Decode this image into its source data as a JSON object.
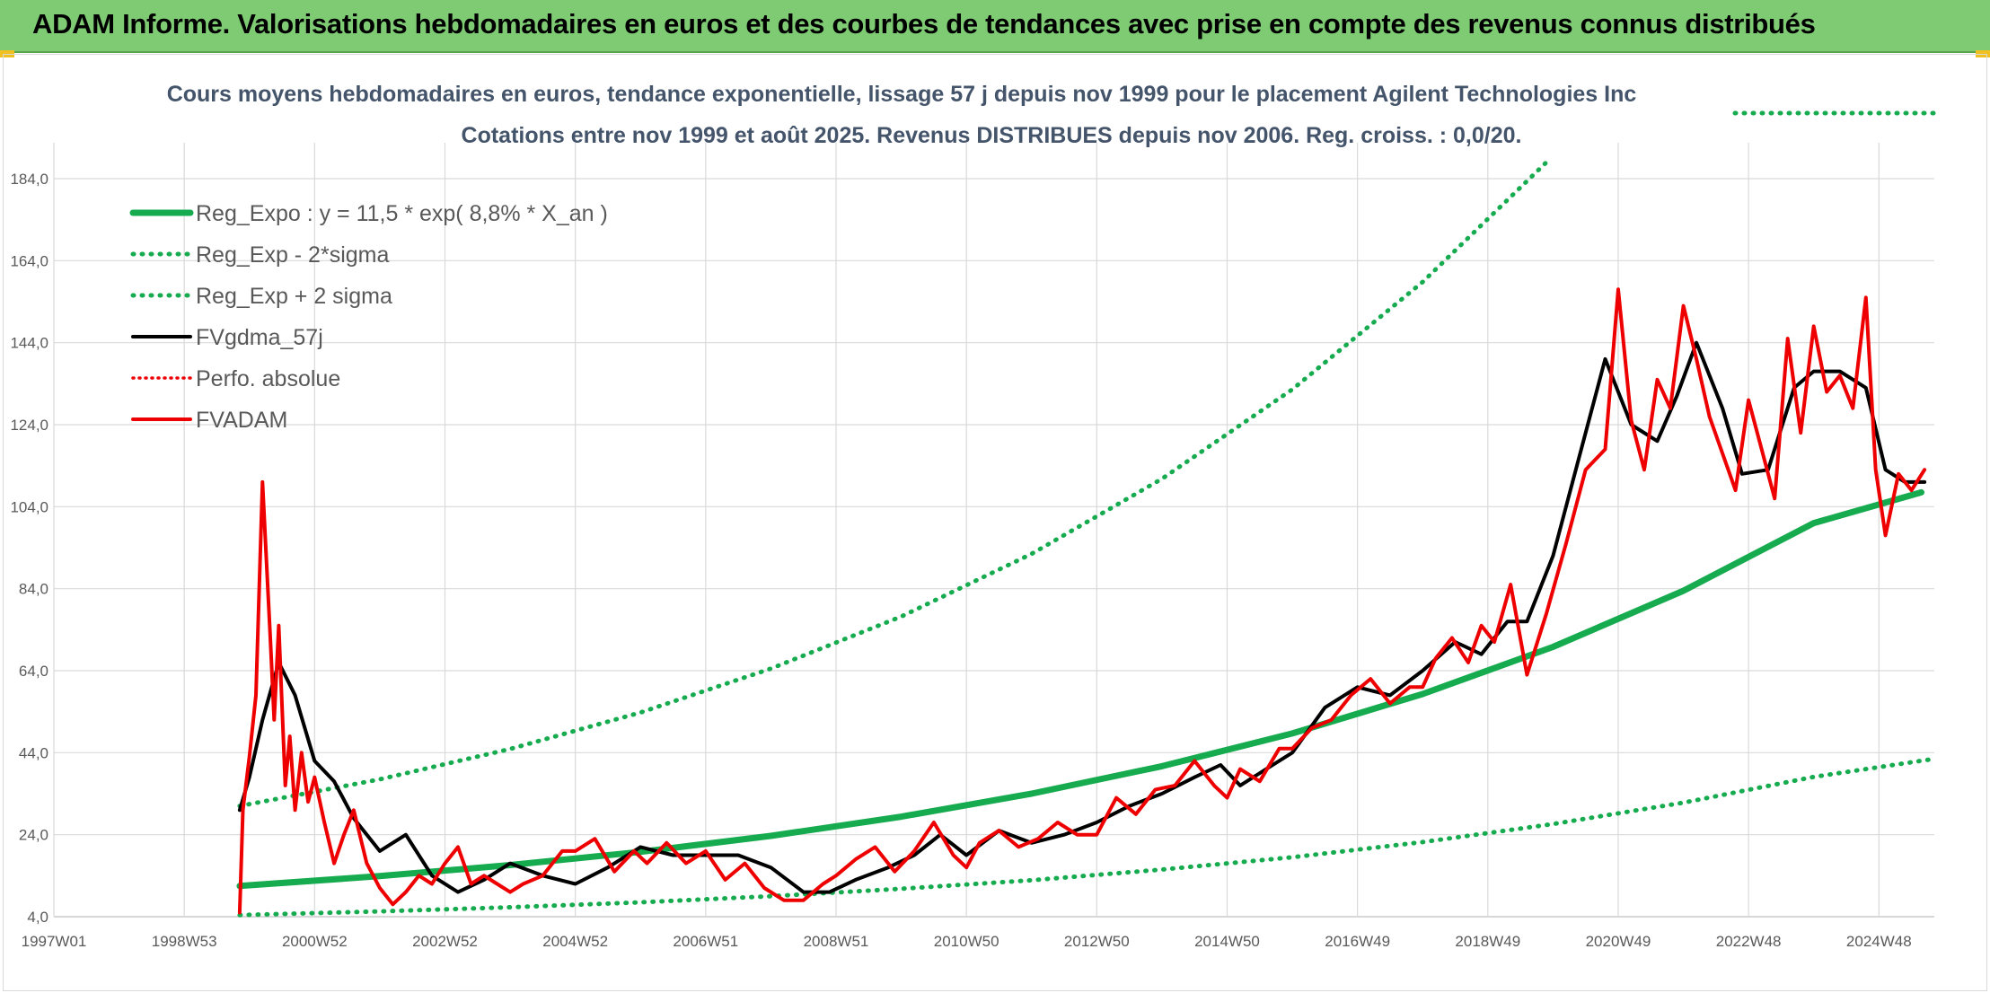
{
  "banner": {
    "title": "ADAM Informe. Valorisations hebdomadaires en euros et des courbes de tendances avec prise en compte des revenus connus distribués"
  },
  "colors": {
    "banner_bg": "#7ecb74",
    "reg_green": "#16ab4f",
    "fvgdma_black": "#000000",
    "fvadam_red": "#ee0000",
    "title_blue": "#44546a"
  },
  "chart_data": {
    "type": "line",
    "title": "Cours moyens hebdomadaires en euros, tendance exponentielle, lissage 57 j depuis nov 1999 pour le placement Agilent Technologies Inc",
    "subtitle": "Cotations entre nov 1999 et août 2025. Revenus DISTRIBUES depuis nov 2006. Reg. croiss. : 0,0/20.",
    "xlabel": "",
    "ylabel": "",
    "x_ticks": [
      "1997W01",
      "1998W53",
      "2000W52",
      "2002W52",
      "2004W52",
      "2006W51",
      "2008W51",
      "2010W50",
      "2012W50",
      "2014W50",
      "2016W49",
      "2018W49",
      "2020W49",
      "2022W48",
      "2024W48"
    ],
    "xlim": [
      1997.0,
      2025.85
    ],
    "y_ticks": [
      "4,0",
      "24,0",
      "44,0",
      "64,0",
      "84,0",
      "104,0",
      "124,0",
      "144,0",
      "164,0",
      "184,0"
    ],
    "ylim": [
      4,
      184
    ],
    "grid": true,
    "legend_position": "top-left",
    "series": [
      {
        "name": "Reg_Expo : y = 11,5 * exp( 8,8% *  X_an )",
        "style": "solid-green",
        "x": [
          1999.85,
          2002.0,
          2004.0,
          2006.0,
          2008.0,
          2010.0,
          2012.0,
          2014.0,
          2016.0,
          2018.0,
          2020.0,
          2022.0,
          2024.0,
          2025.65
        ],
        "values": [
          11.5,
          13.9,
          16.6,
          19.8,
          23.7,
          28.4,
          34.0,
          40.7,
          48.7,
          58.3,
          69.8,
          83.5,
          100.0,
          107.5
        ]
      },
      {
        "name": "Reg_Exp - 2*sigma",
        "style": "dotted-green",
        "x": [
          1999.85,
          2002.0,
          2004.0,
          2006.0,
          2008.0,
          2010.0,
          2012.0,
          2014.0,
          2016.0,
          2018.0,
          2020.0,
          2022.0,
          2024.0,
          2025.85
        ],
        "values": [
          4.4,
          5.3,
          6.3,
          7.5,
          9.0,
          10.8,
          12.9,
          15.5,
          18.5,
          22.2,
          26.6,
          31.8,
          38.1,
          42.5
        ]
      },
      {
        "name": "Reg_Exp + 2 sigma",
        "style": "dotted-green",
        "x": [
          1999.85,
          2002.0,
          2004.0,
          2006.0,
          2008.0,
          2010.0,
          2012.0,
          2014.0,
          2016.0,
          2018.0,
          2019.9
        ],
        "values": [
          31.0,
          37.5,
          44.9,
          53.8,
          64.5,
          77.2,
          92.5,
          110.8,
          132.6,
          158.8,
          188.0
        ]
      },
      {
        "name": "FVgdma_57j",
        "style": "solid-black",
        "x": [
          1999.85,
          2000.0,
          2000.2,
          2000.45,
          2000.7,
          2001.0,
          2001.3,
          2001.6,
          2002.0,
          2002.4,
          2002.8,
          2003.2,
          2003.6,
          2004.0,
          2004.5,
          2005.0,
          2005.5,
          2006.0,
          2006.5,
          2007.0,
          2007.5,
          2008.0,
          2008.5,
          2008.9,
          2009.3,
          2009.8,
          2010.2,
          2010.6,
          2011.0,
          2011.5,
          2012.0,
          2012.5,
          2013.0,
          2013.5,
          2014.0,
          2014.5,
          2014.9,
          2015.2,
          2015.6,
          2016.0,
          2016.5,
          2017.0,
          2017.5,
          2018.0,
          2018.5,
          2018.9,
          2019.3,
          2019.6,
          2020.0,
          2020.4,
          2020.8,
          2021.2,
          2021.6,
          2021.9,
          2022.2,
          2022.6,
          2022.9,
          2023.3,
          2023.7,
          2024.0,
          2024.4,
          2024.8,
          2025.1,
          2025.4,
          2025.7
        ],
        "values": [
          30,
          38,
          52,
          66,
          58,
          42,
          37,
          28,
          20,
          24,
          14,
          10,
          13,
          17,
          14,
          12,
          16,
          21,
          19,
          19,
          19,
          16,
          10,
          10,
          13,
          16,
          19,
          24,
          19,
          25,
          22,
          24,
          27,
          31,
          34,
          38,
          41,
          36,
          40,
          44,
          55,
          60,
          58,
          64,
          71,
          68,
          76,
          76,
          92,
          116,
          140,
          124,
          120,
          131,
          144,
          128,
          112,
          113,
          133,
          137,
          137,
          133,
          113,
          110,
          110
        ]
      },
      {
        "name": "Perfo. absolue",
        "style": "dotted-red",
        "x": [],
        "values": []
      },
      {
        "name": "FVADAM",
        "style": "solid-red",
        "x": [
          1999.85,
          1999.9,
          2000.0,
          2000.1,
          2000.2,
          2000.32,
          2000.38,
          2000.45,
          2000.55,
          2000.62,
          2000.7,
          2000.8,
          2000.9,
          2001.0,
          2001.15,
          2001.3,
          2001.45,
          2001.6,
          2001.8,
          2002.0,
          2002.2,
          2002.4,
          2002.6,
          2002.8,
          2003.0,
          2003.2,
          2003.4,
          2003.6,
          2003.8,
          2004.0,
          2004.2,
          2004.5,
          2004.8,
          2005.0,
          2005.3,
          2005.6,
          2005.9,
          2006.1,
          2006.4,
          2006.7,
          2007.0,
          2007.3,
          2007.6,
          2007.9,
          2008.2,
          2008.5,
          2008.8,
          2009.0,
          2009.3,
          2009.6,
          2009.9,
          2010.2,
          2010.5,
          2010.8,
          2011.0,
          2011.2,
          2011.5,
          2011.8,
          2012.1,
          2012.4,
          2012.7,
          2013.0,
          2013.3,
          2013.6,
          2013.9,
          2014.2,
          2014.5,
          2014.8,
          2015.0,
          2015.2,
          2015.5,
          2015.8,
          2016.0,
          2016.3,
          2016.6,
          2016.9,
          2017.2,
          2017.5,
          2017.8,
          2018.0,
          2018.2,
          2018.45,
          2018.7,
          2018.9,
          2019.1,
          2019.35,
          2019.6,
          2019.9,
          2020.2,
          2020.5,
          2020.8,
          2021.0,
          2021.2,
          2021.4,
          2021.6,
          2021.8,
          2022.0,
          2022.2,
          2022.4,
          2022.6,
          2022.8,
          2023.0,
          2023.2,
          2023.4,
          2023.6,
          2023.8,
          2024.0,
          2024.2,
          2024.4,
          2024.6,
          2024.8,
          2024.95,
          2025.1,
          2025.3,
          2025.5,
          2025.7
        ],
        "values": [
          5,
          30,
          43,
          58,
          110,
          72,
          52,
          75,
          36,
          48,
          30,
          44,
          32,
          38,
          27,
          17,
          24,
          30,
          17,
          11,
          7,
          10,
          14,
          12,
          17,
          21,
          12,
          14,
          12,
          10,
          12,
          14,
          20,
          20,
          23,
          15,
          20,
          17,
          22,
          17,
          20,
          13,
          17,
          11,
          8,
          8,
          12,
          14,
          18,
          21,
          15,
          20,
          27,
          19,
          16,
          22,
          25,
          21,
          23,
          27,
          24,
          24,
          33,
          29,
          35,
          36,
          42,
          36,
          33,
          40,
          37,
          45,
          45,
          50,
          52,
          58,
          62,
          56,
          60,
          60,
          67,
          72,
          66,
          75,
          71,
          85,
          63,
          78,
          95,
          113,
          118,
          157,
          125,
          113,
          135,
          128,
          153,
          140,
          126,
          117,
          108,
          130,
          118,
          106,
          145,
          122,
          148,
          132,
          136,
          128,
          155,
          113,
          97,
          112,
          108,
          113
        ]
      }
    ]
  }
}
